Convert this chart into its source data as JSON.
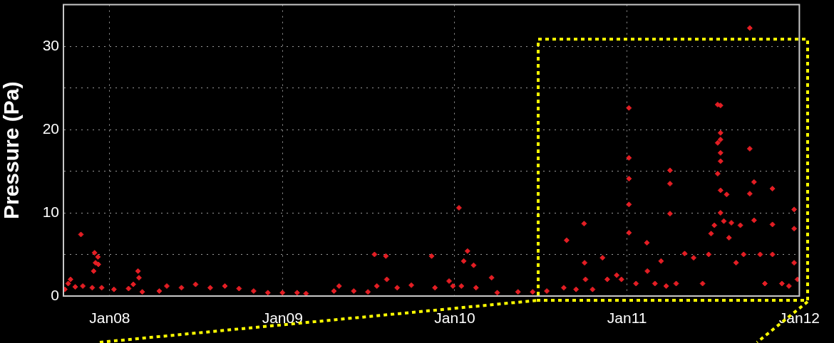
{
  "chart_data": {
    "type": "scatter",
    "ylabel": "Pressure (Pa)",
    "xlim": [
      "2007-09-25",
      "2012-01-01"
    ],
    "xticks": [
      {
        "value": "2008-01-01",
        "label": "Jan08"
      },
      {
        "value": "2009-01-01",
        "label": "Jan09"
      },
      {
        "value": "2010-01-01",
        "label": "Jan10"
      },
      {
        "value": "2011-01-01",
        "label": "Jan11"
      },
      {
        "value": "2012-01-01",
        "label": "Jan12"
      }
    ],
    "ylim": [
      0,
      35
    ],
    "yticks": [
      0,
      {
        "value": 5,
        "label": null
      },
      10,
      {
        "value": 15,
        "label": null
      },
      20,
      {
        "value": 25,
        "label": null
      },
      30
    ],
    "grid": true,
    "marker": "diamond",
    "series": [
      {
        "color": "#e31e24",
        "x": [
          "2007-09-28",
          "2007-10-05",
          "2007-10-10",
          "2007-10-20",
          "2007-11-01",
          "2007-11-05",
          "2007-11-25",
          "2007-11-28",
          "2007-11-30",
          "2007-12-02",
          "2007-12-07",
          "2007-12-08",
          "2007-12-15",
          "2008-01-10",
          "2008-02-10",
          "2008-02-20",
          "2008-03-01",
          "2008-03-03",
          "2008-03-10",
          "2008-04-15",
          "2008-05-01",
          "2008-06-01",
          "2008-07-01",
          "2008-08-01",
          "2008-09-01",
          "2008-10-01",
          "2008-11-01",
          "2008-12-01",
          "2009-01-01",
          "2009-02-01",
          "2009-02-20",
          "2009-04-20",
          "2009-05-01",
          "2009-06-01",
          "2009-07-01",
          "2009-07-15",
          "2009-07-20",
          "2009-08-08",
          "2009-08-10",
          "2009-09-01",
          "2009-10-01",
          "2009-11-13",
          "2009-11-20",
          "2009-12-20",
          "2009-12-28",
          "2010-01-10",
          "2010-01-15",
          "2010-01-20",
          "2010-01-28",
          "2010-02-10",
          "2010-02-15",
          "2010-03-20",
          "2010-04-01",
          "2010-05-15",
          "2010-06-15",
          "2010-07-15",
          "2010-08-20",
          "2010-08-26",
          "2010-09-15",
          "2010-10-02",
          "2010-10-03",
          "2010-10-05",
          "2010-10-20",
          "2010-11-10",
          "2010-11-20",
          "2010-12-10",
          "2010-12-20",
          "2011-01-05",
          "2011-01-05",
          "2011-01-05",
          "2011-01-05",
          "2011-01-05",
          "2011-01-20",
          "2011-02-12",
          "2011-02-13",
          "2011-03-01",
          "2011-03-14",
          "2011-03-25",
          "2011-04-02",
          "2011-04-02",
          "2011-04-02",
          "2011-04-15",
          "2011-05-03",
          "2011-05-22",
          "2011-06-10",
          "2011-06-23",
          "2011-06-28",
          "2011-07-05",
          "2011-07-12",
          "2011-07-12",
          "2011-07-12",
          "2011-07-18",
          "2011-07-18",
          "2011-07-18",
          "2011-07-18",
          "2011-07-18",
          "2011-07-18",
          "2011-07-18",
          "2011-07-25",
          "2011-07-31",
          "2011-08-05",
          "2011-08-10",
          "2011-08-20",
          "2011-08-29",
          "2011-09-05",
          "2011-09-18",
          "2011-09-18",
          "2011-09-18",
          "2011-09-27",
          "2011-09-27",
          "2011-10-10",
          "2011-10-20",
          "2011-11-05",
          "2011-11-05",
          "2011-11-05",
          "2011-11-25",
          "2011-12-10",
          "2011-12-21",
          "2011-12-21",
          "2011-12-21",
          "2011-12-28"
        ],
        "values": [
          0.8,
          1.5,
          2.0,
          1.1,
          7.4,
          1.2,
          1.0,
          3.0,
          5.2,
          4.0,
          4.7,
          3.8,
          1.0,
          0.8,
          0.9,
          1.4,
          3.0,
          2.2,
          0.5,
          0.6,
          1.2,
          1.0,
          1.4,
          1.0,
          1.2,
          0.9,
          0.6,
          0.4,
          0.4,
          0.4,
          0.3,
          0.6,
          1.2,
          0.6,
          0.5,
          5.0,
          1.2,
          4.8,
          2.0,
          1.0,
          1.3,
          4.8,
          1.0,
          1.8,
          1.2,
          10.6,
          1.2,
          4.2,
          5.4,
          3.7,
          1.0,
          2.2,
          0.4,
          0.5,
          0.5,
          0.6,
          1.0,
          6.7,
          0.8,
          8.7,
          4.0,
          2.0,
          0.8,
          4.6,
          2.0,
          2.5,
          2.0,
          22.6,
          16.6,
          14.1,
          11.0,
          7.6,
          1.5,
          6.4,
          3.0,
          1.5,
          4.2,
          1.2,
          15.1,
          13.5,
          9.9,
          1.5,
          5.1,
          4.6,
          1.5,
          5.0,
          7.5,
          8.5,
          23.0,
          18.4,
          14.7,
          22.9,
          19.6,
          18.8,
          17.2,
          16.2,
          12.7,
          10.0,
          9.0,
          12.2,
          7.0,
          8.8,
          4.0,
          8.5,
          5.0,
          32.2,
          17.7,
          12.3,
          13.7,
          9.1,
          5.0,
          1.5,
          12.9,
          8.6,
          5.0,
          1.5,
          1.2,
          10.4,
          8.1,
          4.0,
          2.0
        ]
      }
    ]
  }
}
